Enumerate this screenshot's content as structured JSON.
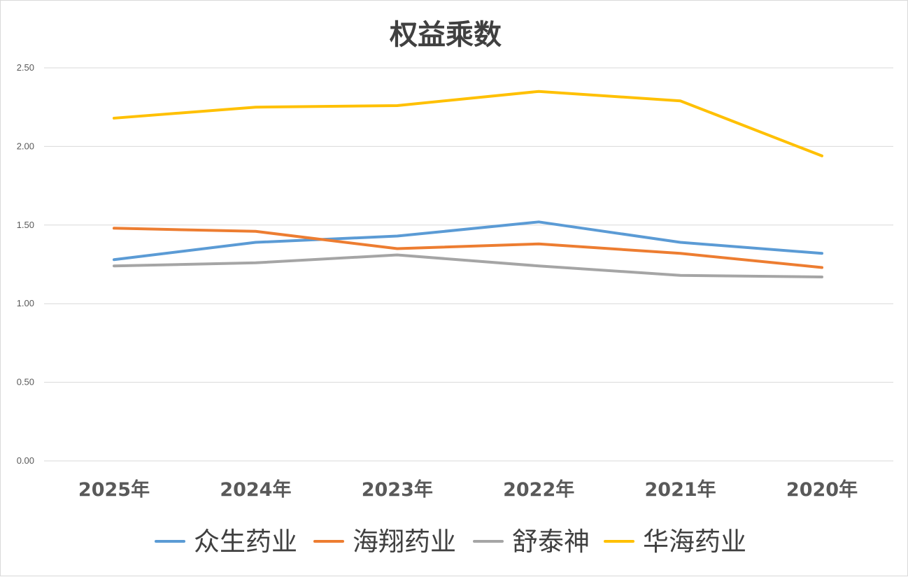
{
  "chart_data": {
    "type": "line",
    "title": "权益乘数",
    "categories": [
      "2025年",
      "2024年",
      "2023年",
      "2022年",
      "2021年",
      "2020年"
    ],
    "ylim": [
      0,
      2.5
    ],
    "yticks": [
      "0.00",
      "0.50",
      "1.00",
      "1.50",
      "2.00",
      "2.50"
    ],
    "ytick_values": [
      0,
      0.5,
      1,
      1.5,
      2,
      2.5
    ],
    "grid": true,
    "legend_position": "bottom",
    "series": [
      {
        "name": "众生药业",
        "color": "#5b9bd5",
        "values": [
          1.28,
          1.39,
          1.43,
          1.52,
          1.39,
          1.32
        ]
      },
      {
        "name": "海翔药业",
        "color": "#ed7d31",
        "values": [
          1.48,
          1.46,
          1.35,
          1.38,
          1.32,
          1.23
        ]
      },
      {
        "name": "舒泰神",
        "color": "#a5a5a5",
        "values": [
          1.24,
          1.26,
          1.31,
          1.24,
          1.18,
          1.17
        ]
      },
      {
        "name": "华海药业",
        "color": "#ffc000",
        "values": [
          2.18,
          2.25,
          2.26,
          2.35,
          2.29,
          1.94
        ]
      }
    ]
  }
}
